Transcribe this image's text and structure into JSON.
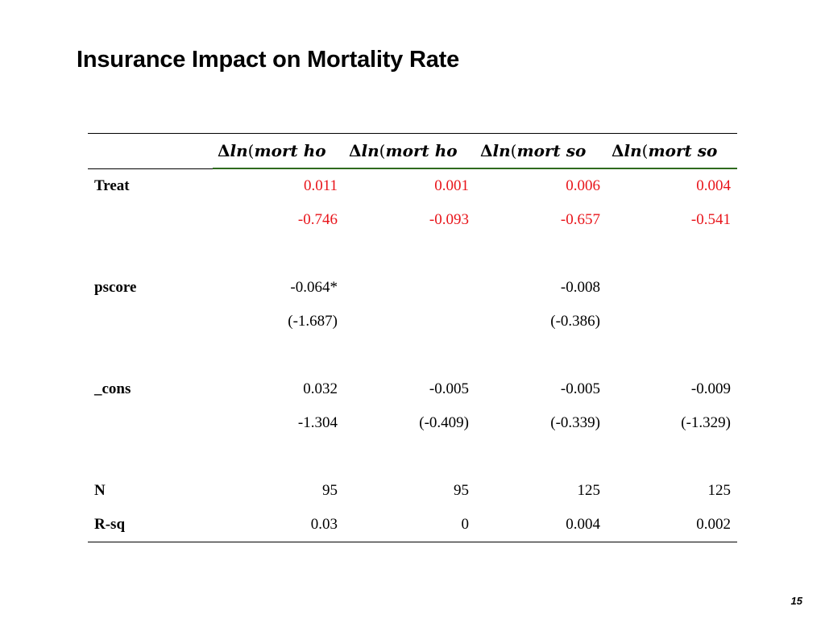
{
  "slide": {
    "title": "Insurance Impact on Mortality Rate",
    "page_number": "15"
  },
  "colors": {
    "highlight": "#e8141a",
    "header_underline": "#2e6a1e"
  },
  "table": {
    "headers": [
      {
        "delta": "Δ",
        "fn": "ln",
        "paren": "(",
        "var": "mort ho"
      },
      {
        "delta": "Δ",
        "fn": "ln",
        "paren": "(",
        "var": "mort ho"
      },
      {
        "delta": "Δ",
        "fn": "ln",
        "paren": "(",
        "var": "mort so"
      },
      {
        "delta": "Δ",
        "fn": "ln",
        "paren": "(",
        "var": "mort so"
      }
    ],
    "rows": {
      "treat": {
        "label": "Treat",
        "values": [
          "0.011",
          "0.001",
          "0.006",
          "0.004"
        ]
      },
      "treat_t": {
        "label": "",
        "values": [
          "-0.746",
          "-0.093",
          "-0.657",
          "-0.541"
        ]
      },
      "pscore": {
        "label": "pscore",
        "values": [
          "-0.064*",
          "",
          "-0.008",
          ""
        ]
      },
      "pscore_t": {
        "label": "",
        "values": [
          "(-1.687)",
          "",
          "(-0.386)",
          ""
        ]
      },
      "cons": {
        "label": "_cons",
        "values": [
          "0.032",
          "-0.005",
          "-0.005",
          "-0.009"
        ]
      },
      "cons_t": {
        "label": "",
        "values": [
          "-1.304",
          "(-0.409)",
          "(-0.339)",
          "(-1.329)"
        ]
      },
      "n": {
        "label": "N",
        "values": [
          "95",
          "95",
          "125",
          "125"
        ]
      },
      "rsq": {
        "label": "R-sq",
        "values": [
          "0.03",
          "0",
          "0.004",
          "0.002"
        ]
      }
    }
  }
}
